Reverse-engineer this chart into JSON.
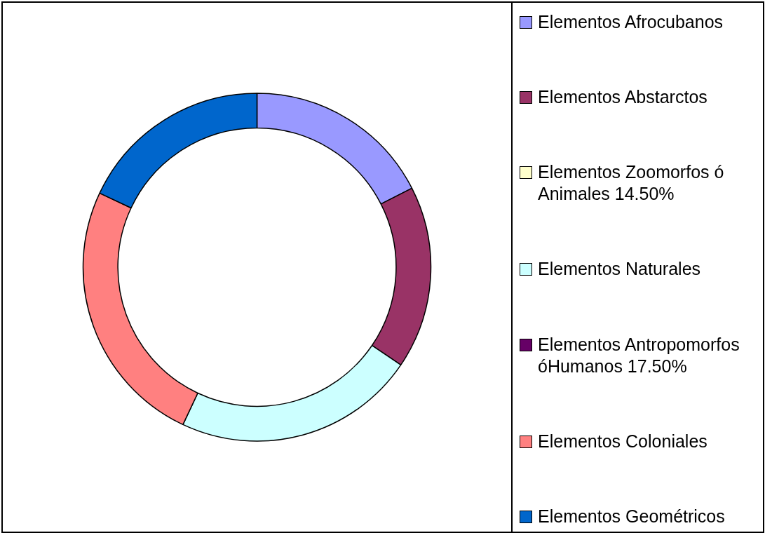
{
  "chart_data": {
    "type": "donut",
    "categories": [
      "Elementos Afrocubanos",
      "Elementos Abstarctos",
      "Elementos Zoomorfos ó Animales 14.50%",
      "Elementos Naturales",
      "Elementos Antropomorfos óHumanos 17.50%",
      "Elementos Coloniales",
      "Elementos Geométricos"
    ],
    "values": [
      17.5,
      17,
      0,
      22.5,
      0,
      25,
      18
    ],
    "colors": [
      "#9999ff",
      "#993366",
      "#ffffcc",
      "#ccffff",
      "#660066",
      "#ff8080",
      "#0066cc"
    ],
    "legend": "right"
  }
}
